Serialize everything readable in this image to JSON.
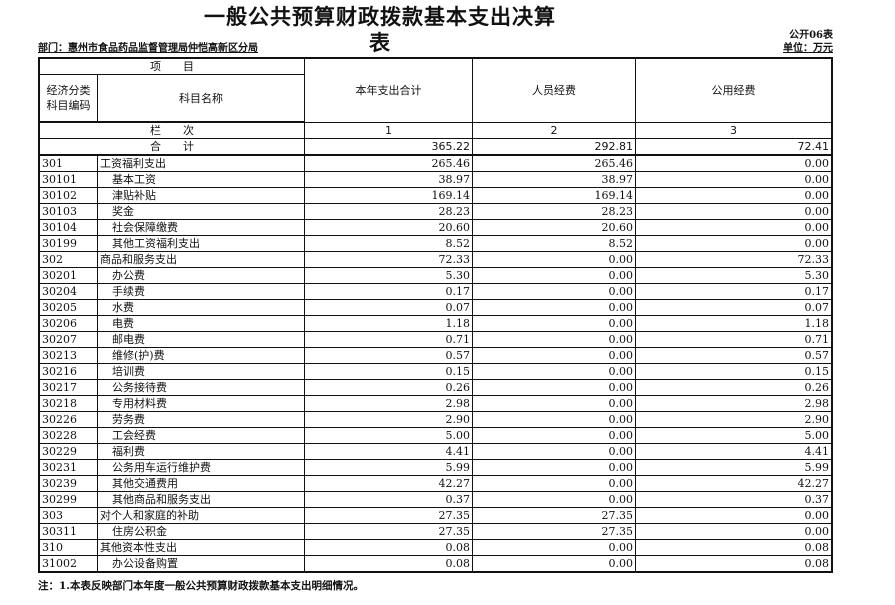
{
  "title": "一般公共预算财政拨款基本支出决算表",
  "form_no": "公开06表",
  "unit": "单位：万元",
  "department": "部门：惠州市食品药品监督管理局仲恺高新区分局",
  "header": {
    "item": "项　　目",
    "code": "经济分类\n科目编码",
    "name": "科目名称",
    "col1": "本年支出合计",
    "col2": "人员经费",
    "col3": "公用经费",
    "row_index_label": "栏　　次",
    "idx1": "1",
    "idx2": "2",
    "idx3": "3",
    "total_label": "合　　计",
    "total": [
      "365.22",
      "292.81",
      "72.41"
    ]
  },
  "rows": [
    {
      "code": "301",
      "name": "工资福利支出",
      "level": 0,
      "v": [
        "265.46",
        "265.46",
        "0.00"
      ]
    },
    {
      "code": "30101",
      "name": "基本工资",
      "level": 1,
      "v": [
        "38.97",
        "38.97",
        "0.00"
      ]
    },
    {
      "code": "30102",
      "name": "津贴补贴",
      "level": 1,
      "v": [
        "169.14",
        "169.14",
        "0.00"
      ]
    },
    {
      "code": "30103",
      "name": "奖金",
      "level": 1,
      "v": [
        "28.23",
        "28.23",
        "0.00"
      ]
    },
    {
      "code": "30104",
      "name": "社会保障缴费",
      "level": 1,
      "v": [
        "20.60",
        "20.60",
        "0.00"
      ]
    },
    {
      "code": "30199",
      "name": "其他工资福利支出",
      "level": 1,
      "v": [
        "8.52",
        "8.52",
        "0.00"
      ]
    },
    {
      "code": "302",
      "name": "商品和服务支出",
      "level": 0,
      "v": [
        "72.33",
        "0.00",
        "72.33"
      ]
    },
    {
      "code": "30201",
      "name": "办公费",
      "level": 1,
      "v": [
        "5.30",
        "0.00",
        "5.30"
      ]
    },
    {
      "code": "30204",
      "name": "手续费",
      "level": 1,
      "v": [
        "0.17",
        "0.00",
        "0.17"
      ]
    },
    {
      "code": "30205",
      "name": "水费",
      "level": 1,
      "v": [
        "0.07",
        "0.00",
        "0.07"
      ]
    },
    {
      "code": "30206",
      "name": "电费",
      "level": 1,
      "v": [
        "1.18",
        "0.00",
        "1.18"
      ]
    },
    {
      "code": "30207",
      "name": "邮电费",
      "level": 1,
      "v": [
        "0.71",
        "0.00",
        "0.71"
      ]
    },
    {
      "code": "30213",
      "name": "维修(护)费",
      "level": 1,
      "v": [
        "0.57",
        "0.00",
        "0.57"
      ]
    },
    {
      "code": "30216",
      "name": "培训费",
      "level": 1,
      "v": [
        "0.15",
        "0.00",
        "0.15"
      ]
    },
    {
      "code": "30217",
      "name": "公务接待费",
      "level": 1,
      "v": [
        "0.26",
        "0.00",
        "0.26"
      ]
    },
    {
      "code": "30218",
      "name": "专用材料费",
      "level": 1,
      "v": [
        "2.98",
        "0.00",
        "2.98"
      ]
    },
    {
      "code": "30226",
      "name": "劳务费",
      "level": 1,
      "v": [
        "2.90",
        "0.00",
        "2.90"
      ]
    },
    {
      "code": "30228",
      "name": "工会经费",
      "level": 1,
      "v": [
        "5.00",
        "0.00",
        "5.00"
      ]
    },
    {
      "code": "30229",
      "name": "福利费",
      "level": 1,
      "v": [
        "4.41",
        "0.00",
        "4.41"
      ]
    },
    {
      "code": "30231",
      "name": "公务用车运行维护费",
      "level": 1,
      "v": [
        "5.99",
        "0.00",
        "5.99"
      ]
    },
    {
      "code": "30239",
      "name": "其他交通费用",
      "level": 1,
      "v": [
        "42.27",
        "0.00",
        "42.27"
      ]
    },
    {
      "code": "30299",
      "name": "其他商品和服务支出",
      "level": 1,
      "v": [
        "0.37",
        "0.00",
        "0.37"
      ]
    },
    {
      "code": "303",
      "name": "对个人和家庭的补助",
      "level": 0,
      "v": [
        "27.35",
        "27.35",
        "0.00"
      ]
    },
    {
      "code": "30311",
      "name": "住房公积金",
      "level": 1,
      "v": [
        "27.35",
        "27.35",
        "0.00"
      ]
    },
    {
      "code": "310",
      "name": "其他资本性支出",
      "level": 0,
      "v": [
        "0.08",
        "0.00",
        "0.08"
      ]
    },
    {
      "code": "31002",
      "name": "办公设备购置",
      "level": 1,
      "v": [
        "0.08",
        "0.00",
        "0.08"
      ]
    }
  ],
  "note": "注：1.本表反映部门本年度一般公共预算财政拨款基本支出明细情况。"
}
